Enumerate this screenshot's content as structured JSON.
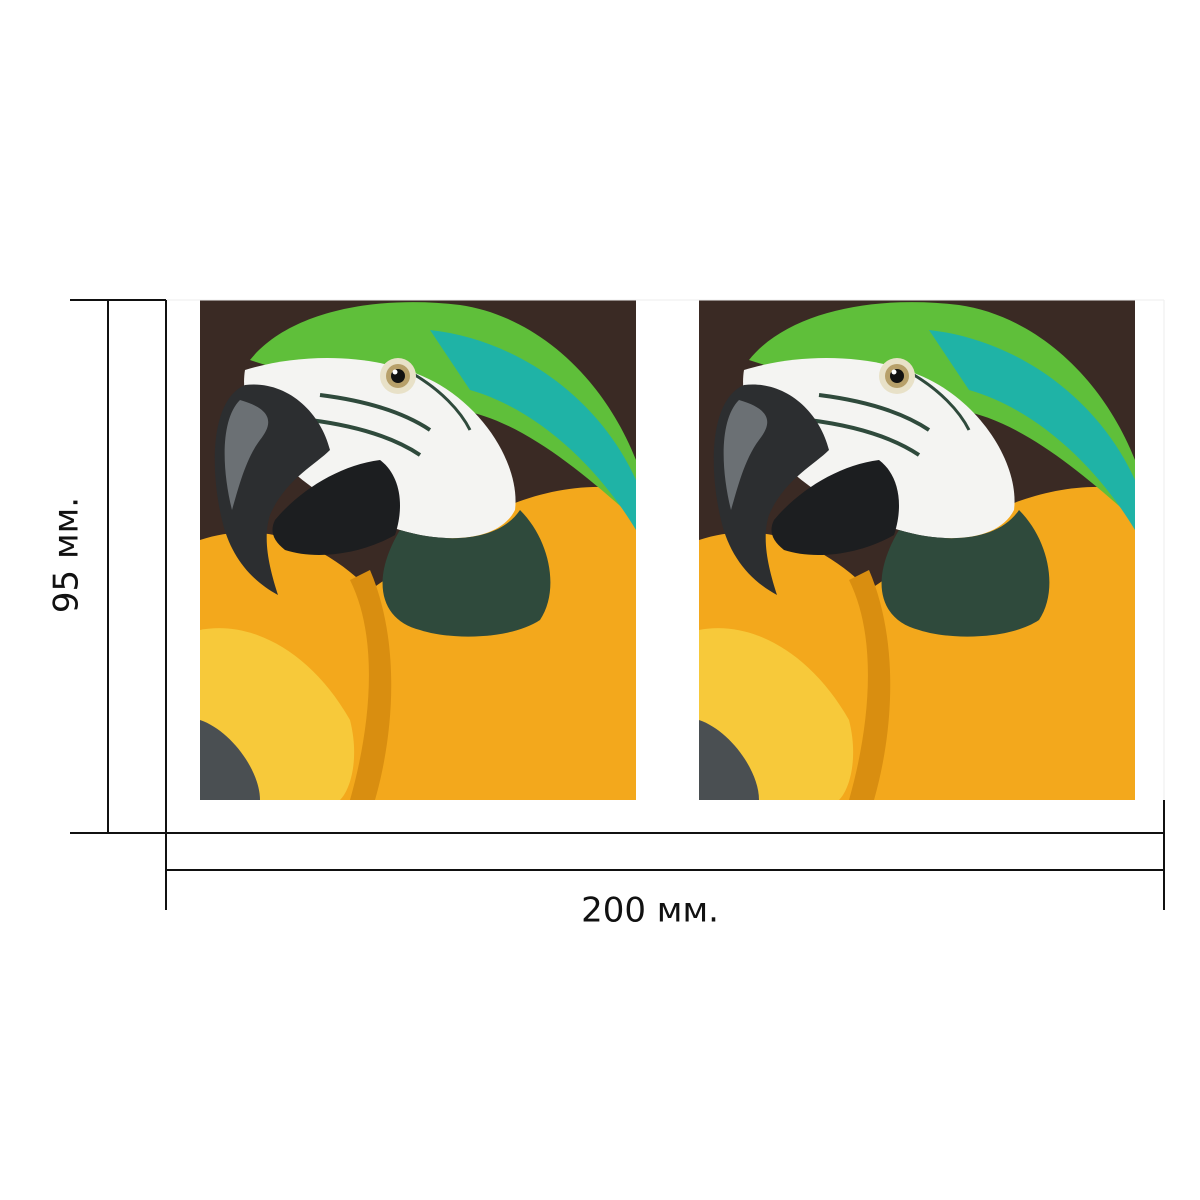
{
  "dimensions": {
    "height_label": "95 мм.",
    "width_label": "200 мм."
  },
  "photos": [
    {
      "subject": "parrot-photo",
      "alt": ""
    },
    {
      "subject": "parrot-photo",
      "alt": ""
    }
  ],
  "colors": {
    "background": "#3a2a24",
    "yellow": "#f3a81c",
    "yellow_light": "#f7c93a",
    "green": "#5fbf3a",
    "teal": "#1fb3a6",
    "white": "#f4f4f2",
    "dark_green": "#2f4a3c",
    "beak": "#2c2e30",
    "beak_light": "#6b7074",
    "line": "#111111"
  }
}
